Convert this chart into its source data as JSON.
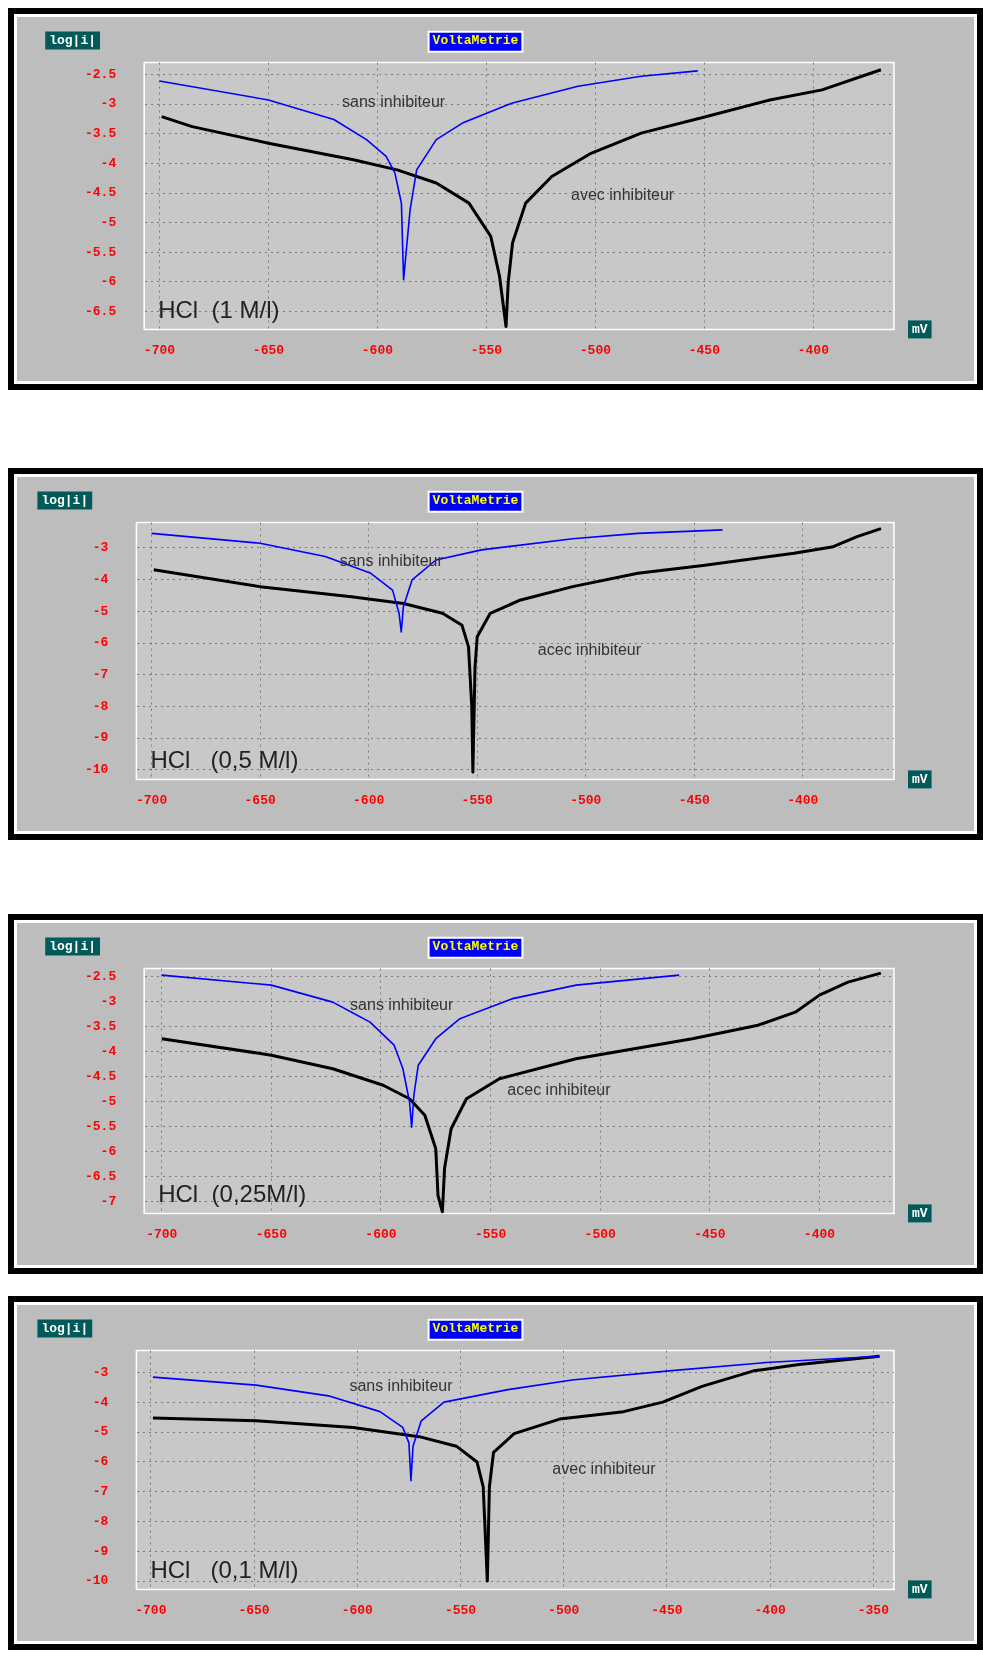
{
  "chart_data": [
    {
      "type": "line",
      "title": "VoltaMetrie",
      "xlabel": "mV",
      "ylabel": "log|i|",
      "annotations": [
        "HCl  (1 M/l)"
      ],
      "xlim": [
        -707,
        -363
      ],
      "ylim": [
        -6.8,
        -2.3
      ],
      "xticks": [
        -700,
        -650,
        -600,
        -550,
        -500,
        -450,
        -400
      ],
      "yticks": [
        -2.5,
        -3,
        -3.5,
        -4,
        -4.5,
        -5,
        -5.5,
        -6,
        -6.5
      ],
      "grid": true,
      "legend": false,
      "marker": "none",
      "line_style": "solid",
      "series": [
        {
          "name": "sans inhibiteur",
          "color": "#0000ff",
          "x": [
            -700,
            -650,
            -620,
            -605,
            -596,
            -592,
            -589,
            -588,
            -585,
            -582,
            -573,
            -561,
            -538,
            -508,
            -479,
            -453
          ],
          "values": [
            -2.61,
            -2.93,
            -3.26,
            -3.6,
            -3.88,
            -4.16,
            -4.67,
            -5.96,
            -4.78,
            -4.11,
            -3.6,
            -3.32,
            -2.98,
            -2.7,
            -2.53,
            -2.44
          ]
        },
        {
          "name": "avec inhibiteur",
          "color": "#000000",
          "x": [
            -699,
            -685,
            -650,
            -611,
            -591,
            -573,
            -558,
            -548,
            -544,
            -541,
            -540,
            -538,
            -532,
            -520,
            -502,
            -479,
            -449,
            -420,
            -396,
            -369
          ],
          "values": [
            -3.21,
            -3.38,
            -3.66,
            -3.94,
            -4.11,
            -4.33,
            -4.67,
            -5.23,
            -5.9,
            -6.75,
            -6.01,
            -5.34,
            -4.67,
            -4.22,
            -3.83,
            -3.49,
            -3.21,
            -2.93,
            -2.76,
            -2.42
          ]
        }
      ]
    },
    {
      "type": "line",
      "title": "VoltaMetrie",
      "xlabel": "mV",
      "ylabel": "log|i|",
      "annotations": [
        "HCl   (0,5 M/l)"
      ],
      "xlim": [
        -707,
        -358
      ],
      "ylim": [
        -10.3,
        -2.2
      ],
      "xticks": [
        -700,
        -650,
        -600,
        -550,
        -500,
        -450,
        -400
      ],
      "yticks": [
        -3,
        -4,
        -5,
        -6,
        -7,
        -8,
        -9,
        -10
      ],
      "grid": true,
      "legend": false,
      "marker": "none",
      "line_style": "solid",
      "series": [
        {
          "name": "sans inhibiteur",
          "color": "#0000ff",
          "x": [
            -700,
            -650,
            -620,
            -599,
            -589,
            -586,
            -585,
            -584,
            -580,
            -569,
            -548,
            -506,
            -476,
            -437
          ],
          "values": [
            -2.54,
            -2.85,
            -3.27,
            -3.8,
            -4.33,
            -5.06,
            -5.65,
            -4.85,
            -4.01,
            -3.38,
            -3.06,
            -2.71,
            -2.54,
            -2.43
          ]
        },
        {
          "name": "acec inhibiteur",
          "color": "#000000",
          "x": [
            -699,
            -650,
            -608,
            -584,
            -566,
            -557,
            -554,
            -552.5,
            -552,
            -551,
            -550,
            -544,
            -530,
            -506,
            -476,
            -446,
            -404,
            -386,
            -375,
            -364
          ],
          "values": [
            -3.69,
            -4.22,
            -4.54,
            -4.75,
            -5.06,
            -5.44,
            -6.12,
            -8.01,
            -10.07,
            -6.75,
            -5.8,
            -5.06,
            -4.64,
            -4.22,
            -3.8,
            -3.55,
            -3.17,
            -2.96,
            -2.64,
            -2.39
          ]
        }
      ]
    },
    {
      "type": "line",
      "title": "VoltaMetrie",
      "xlabel": "mV",
      "ylabel": "log|i|",
      "annotations": [
        "HCl  (0,25M/l)"
      ],
      "xlim": [
        -708,
        -366
      ],
      "ylim": [
        -7.23,
        -2.34
      ],
      "xticks": [
        -700,
        -650,
        -600,
        -550,
        -500,
        -450,
        -400
      ],
      "yticks": [
        -2.5,
        -3,
        -3.5,
        -4,
        -4.5,
        -5,
        -5.5,
        -6,
        -6.5,
        -7
      ],
      "grid": true,
      "legend": false,
      "marker": "none",
      "line_style": "solid",
      "series": [
        {
          "name": "sans inhibiteur",
          "color": "#0000ff",
          "x": [
            -700,
            -650,
            -622,
            -605,
            -594,
            -590,
            -587,
            -586,
            -585,
            -583,
            -575,
            -564,
            -540,
            -511,
            -464
          ],
          "values": [
            -2.47,
            -2.67,
            -3.01,
            -3.41,
            -3.87,
            -4.34,
            -5.0,
            -5.51,
            -4.87,
            -4.27,
            -3.74,
            -3.34,
            -2.94,
            -2.67,
            -2.47
          ]
        },
        {
          "name": "acec inhibiteur",
          "color": "#000000",
          "x": [
            -700,
            -650,
            -622,
            -599,
            -587,
            -580,
            -575,
            -574,
            -572,
            -571,
            -568,
            -561,
            -546,
            -511,
            -458,
            -428,
            -411,
            -400,
            -387,
            -372
          ],
          "values": [
            -3.74,
            -4.07,
            -4.34,
            -4.67,
            -4.94,
            -5.27,
            -5.94,
            -6.87,
            -7.2,
            -6.33,
            -5.54,
            -4.94,
            -4.54,
            -4.14,
            -3.74,
            -3.47,
            -3.21,
            -2.87,
            -2.61,
            -2.43
          ]
        }
      ]
    },
    {
      "type": "line",
      "title": "VoltaMetrie",
      "xlabel": "mV",
      "ylabel": "log|i|",
      "annotations": [
        "HCl   (0,1 M/l)"
      ],
      "xlim": [
        -707,
        -340
      ],
      "ylim": [
        -10.28,
        -2.26
      ],
      "xticks": [
        -700,
        -650,
        -600,
        -550,
        -500,
        -450,
        -400,
        -350
      ],
      "yticks": [
        -3,
        -4,
        -5,
        -6,
        -7,
        -8,
        -9,
        -10
      ],
      "grid": true,
      "legend": false,
      "marker": "none",
      "line_style": "solid",
      "series": [
        {
          "name": "sans inhibiteur",
          "color": "#0000ff",
          "x": [
            -699,
            -649,
            -614,
            -589,
            -578,
            -575,
            -574,
            -573,
            -569,
            -558,
            -527,
            -496,
            -449,
            -402,
            -347
          ],
          "values": [
            -3.15,
            -3.42,
            -3.78,
            -4.31,
            -4.84,
            -5.36,
            -6.63,
            -5.47,
            -4.62,
            -3.99,
            -3.57,
            -3.25,
            -2.94,
            -2.66,
            -2.45
          ]
        },
        {
          "name": "avec inhibiteur",
          "color": "#000000",
          "x": [
            -699,
            -649,
            -602,
            -570,
            -552,
            -542,
            -539,
            -537,
            -536,
            -534,
            -524,
            -502,
            -471,
            -452,
            -433,
            -408,
            -386,
            -347
          ],
          "values": [
            -4.52,
            -4.62,
            -4.84,
            -5.15,
            -5.47,
            -6.0,
            -6.84,
            -10.0,
            -6.84,
            -5.68,
            -5.05,
            -4.56,
            -4.31,
            -3.99,
            -3.46,
            -2.94,
            -2.73,
            -2.45
          ]
        }
      ]
    }
  ]
}
